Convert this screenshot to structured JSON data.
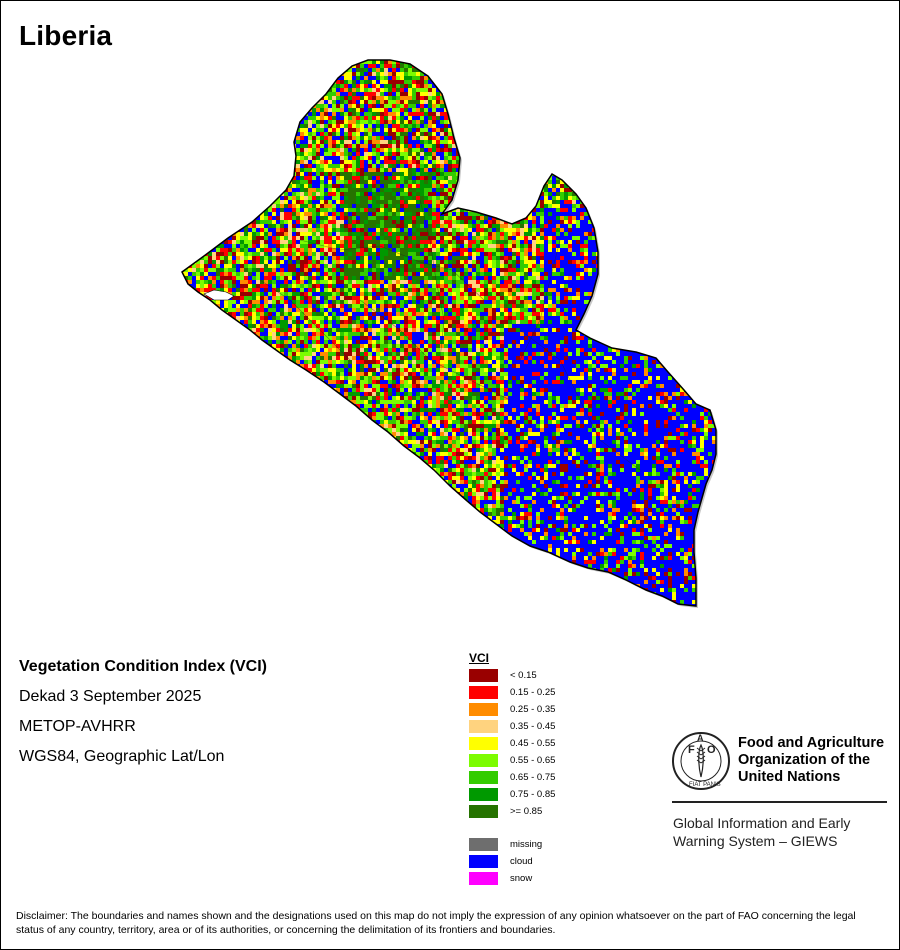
{
  "map": {
    "title": "Liberia",
    "info": {
      "index_name": "Vegetation Condition Index (VCI)",
      "period": "Dekad 3 September 2025",
      "sensor": "METOP-AVHRR",
      "projection": "WGS84, Geographic Lat/Lon"
    },
    "legend": {
      "title": "VCI",
      "classes": [
        {
          "label": "< 0.15",
          "color": "#990000"
        },
        {
          "label": "0.15 - 0.25",
          "color": "#ff0000"
        },
        {
          "label": "0.25 - 0.35",
          "color": "#ff8c00"
        },
        {
          "label": "0.35 - 0.45",
          "color": "#ffd37f"
        },
        {
          "label": "0.45 - 0.55",
          "color": "#ffff00"
        },
        {
          "label": "0.55 - 0.65",
          "color": "#7cfc00"
        },
        {
          "label": "0.65 - 0.75",
          "color": "#33cc00"
        },
        {
          "label": "0.75 - 0.85",
          "color": "#009900"
        },
        {
          "label": ">= 0.85",
          "color": "#267300"
        }
      ],
      "special": [
        {
          "label": "missing",
          "color": "#6e6e6e"
        },
        {
          "label": "cloud",
          "color": "#0000ff"
        },
        {
          "label": "snow",
          "color": "#ff00ff"
        }
      ]
    }
  },
  "organization": {
    "logo_letters": [
      "F",
      "A",
      "O"
    ],
    "logo_motto": "FIAT PANIS",
    "name_lines": [
      "Food and Agriculture",
      "Organization of the",
      "United Nations"
    ],
    "giews_lines": [
      "Global Information and Early",
      "Warning System – GIEWS"
    ]
  },
  "disclaimer": "Disclaimer: The boundaries and names shown and the designations used on this map do not imply the expression of any opinion whatsoever on the part of FAO concerning the legal status of any country, territory, area or of its authorities, or concerning the delimitation of its frontiers and boundaries."
}
